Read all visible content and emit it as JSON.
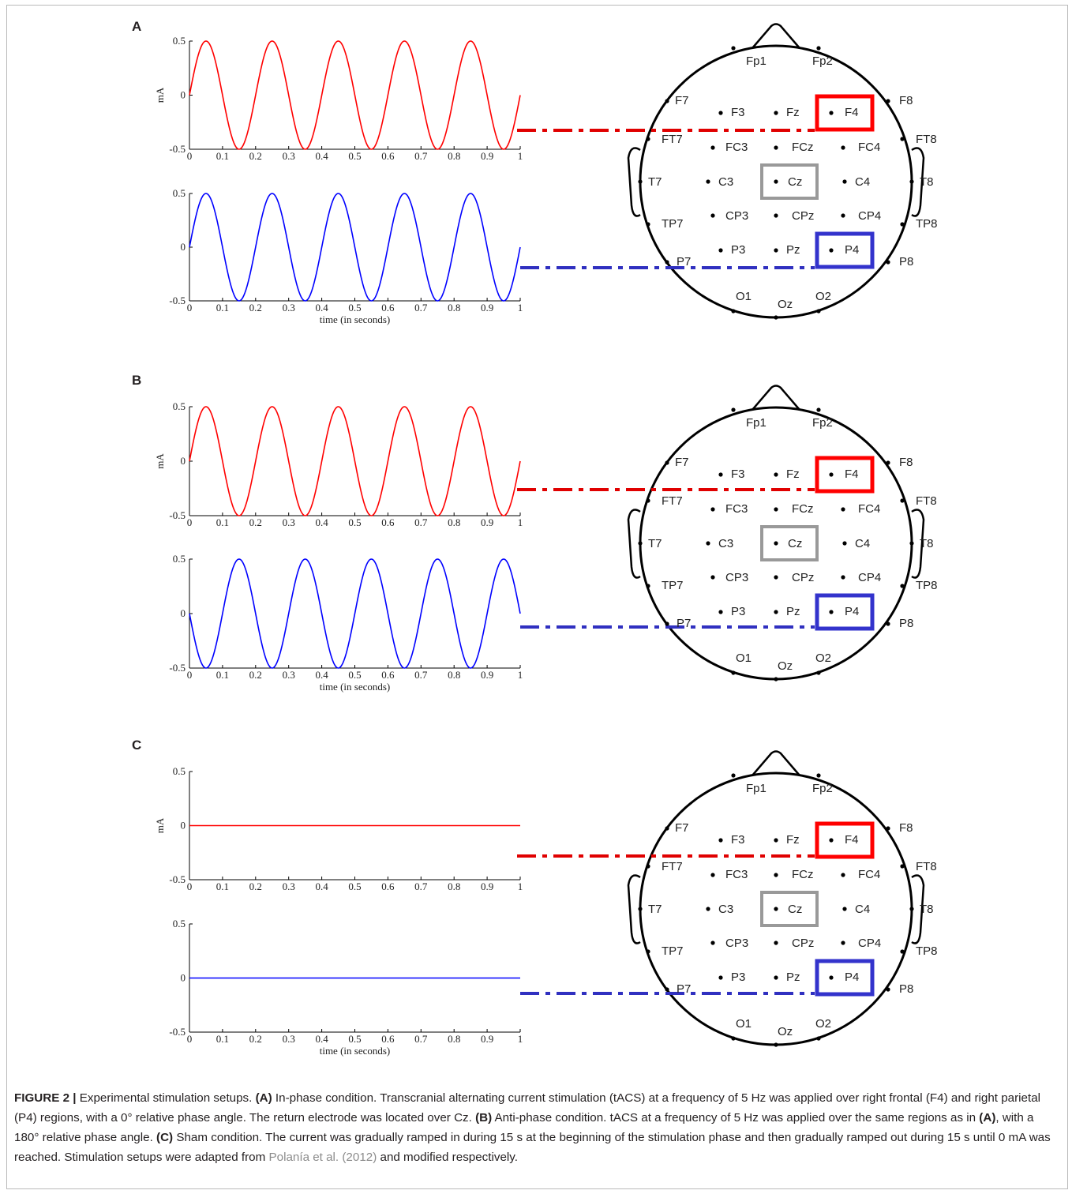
{
  "figure": {
    "panels": [
      {
        "letter": "A"
      },
      {
        "letter": "B"
      },
      {
        "letter": "C"
      }
    ]
  },
  "chart_data": [
    {
      "panel": "A",
      "type": "line",
      "ylabel": "mA",
      "xlabel": "",
      "xlim": [
        0,
        1
      ],
      "ylim": [
        -0.5,
        0.5
      ],
      "x_ticks": [
        "0",
        "0.1",
        "0.2",
        "0.3",
        "0.4",
        "0.5",
        "0.6",
        "0.7",
        "0.8",
        "0.9",
        "1"
      ],
      "y_ticks": [
        "-0.5",
        "0",
        "0.5"
      ],
      "series": [
        {
          "color": "#ff0000",
          "frequency_hz": 5,
          "amplitude_ma": 0.5,
          "phase_deg": 0
        }
      ]
    },
    {
      "panel": "A",
      "type": "line",
      "ylabel": "",
      "xlabel": "time (in seconds)",
      "xlim": [
        0,
        1
      ],
      "ylim": [
        -0.5,
        0.5
      ],
      "x_ticks": [
        "0",
        "0.1",
        "0.2",
        "0.3",
        "0.4",
        "0.5",
        "0.6",
        "0.7",
        "0.8",
        "0.9",
        "1"
      ],
      "y_ticks": [
        "-0.5",
        "0",
        "0.5"
      ],
      "series": [
        {
          "color": "#0000ff",
          "frequency_hz": 5,
          "amplitude_ma": 0.5,
          "phase_deg": 0
        }
      ]
    },
    {
      "panel": "B",
      "type": "line",
      "ylabel": "mA",
      "xlabel": "",
      "xlim": [
        0,
        1
      ],
      "ylim": [
        -0.5,
        0.5
      ],
      "x_ticks": [
        "0",
        "0.1",
        "0.2",
        "0.3",
        "0.4",
        "0.5",
        "0.6",
        "0.7",
        "0.8",
        "0.9",
        "1"
      ],
      "y_ticks": [
        "-0.5",
        "0",
        "0.5"
      ],
      "series": [
        {
          "color": "#ff0000",
          "frequency_hz": 5,
          "amplitude_ma": 0.5,
          "phase_deg": 0
        }
      ]
    },
    {
      "panel": "B",
      "type": "line",
      "ylabel": "",
      "xlabel": "time (in seconds)",
      "xlim": [
        0,
        1
      ],
      "ylim": [
        -0.5,
        0.5
      ],
      "x_ticks": [
        "0",
        "0.1",
        "0.2",
        "0.3",
        "0.4",
        "0.5",
        "0.6",
        "0.7",
        "0.8",
        "0.9",
        "1"
      ],
      "y_ticks": [
        "-0.5",
        "0",
        "0.5"
      ],
      "series": [
        {
          "color": "#0000ff",
          "frequency_hz": 5,
          "amplitude_ma": 0.5,
          "phase_deg": 180
        }
      ]
    },
    {
      "panel": "C",
      "type": "line",
      "ylabel": "mA",
      "xlabel": "",
      "xlim": [
        0,
        1
      ],
      "ylim": [
        -0.5,
        0.5
      ],
      "x_ticks": [
        "0",
        "0.1",
        "0.2",
        "0.3",
        "0.4",
        "0.5",
        "0.6",
        "0.7",
        "0.8",
        "0.9",
        "1"
      ],
      "y_ticks": [
        "-0.5",
        "0",
        "0.5"
      ],
      "series": [
        {
          "color": "#ff0000",
          "frequency_hz": 0,
          "amplitude_ma": 0,
          "phase_deg": 0
        }
      ]
    },
    {
      "panel": "C",
      "type": "line",
      "ylabel": "",
      "xlabel": "time (in seconds)",
      "xlim": [
        0,
        1
      ],
      "ylim": [
        -0.5,
        0.5
      ],
      "x_ticks": [
        "0",
        "0.1",
        "0.2",
        "0.3",
        "0.4",
        "0.5",
        "0.6",
        "0.7",
        "0.8",
        "0.9",
        "1"
      ],
      "y_ticks": [
        "-0.5",
        "0",
        "0.5"
      ],
      "series": [
        {
          "color": "#0000ff",
          "frequency_hz": 0,
          "amplitude_ma": 0,
          "phase_deg": 0
        }
      ]
    }
  ],
  "electrodes": [
    "Fp1",
    "Fp2",
    "F7",
    "F3",
    "Fz",
    "F4",
    "F8",
    "FT7",
    "FC3",
    "FCz",
    "FC4",
    "FT8",
    "T7",
    "C3",
    "Cz",
    "C4",
    "T8",
    "TP7",
    "CP3",
    "CPz",
    "CP4",
    "TP8",
    "P7",
    "P3",
    "Pz",
    "P4",
    "P8",
    "O1",
    "Oz",
    "O2"
  ],
  "highlighted": [
    {
      "label": "F4",
      "color": "#ff0000"
    },
    {
      "label": "P4",
      "color": "#3333cc"
    },
    {
      "label": "Cz",
      "color": "#999999"
    }
  ],
  "caption": {
    "label": "FIGURE 2 |",
    "parts": [
      {
        "text": " Experimental stimulation setups. "
      },
      {
        "text": "(A)",
        "bold": true
      },
      {
        "text": " In-phase condition. Transcranial alternating current stimulation (tACS) at a frequency of 5 Hz was applied over right frontal (F4) and right parietal (P4) regions, with a 0° relative phase angle. The return electrode was located over Cz. "
      },
      {
        "text": "(B)",
        "bold": true
      },
      {
        "text": " Anti-phase condition. tACS at a frequency of 5 Hz was applied over the same regions as in "
      },
      {
        "text": "(A)",
        "bold": true
      },
      {
        "text": ", with a 180° relative phase angle. "
      },
      {
        "text": "(C)",
        "bold": true
      },
      {
        "text": " Sham condition. The current was gradually ramped in during 15 s at the beginning of the stimulation phase and then gradually ramped out during 15 s until 0 mA was reached. Stimulation setups were adapted from "
      },
      {
        "text": "Polanía et al. (2012)",
        "cite": true
      },
      {
        "text": " and modified respectively."
      }
    ]
  }
}
